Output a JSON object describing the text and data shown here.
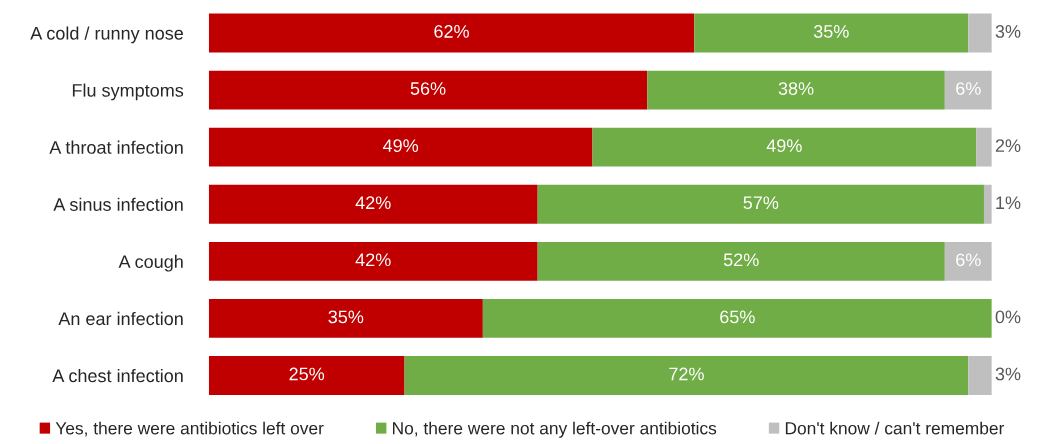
{
  "chart_data": {
    "type": "bar",
    "orientation": "horizontal",
    "stacked": true,
    "tick_labels": "y",
    "legend": "bottom",
    "grid": false,
    "categories": [
      "A cold / runny nose",
      "Flu symptoms",
      "A throat infection",
      "A sinus infection",
      "A cough",
      "An ear infection",
      "A chest infection"
    ],
    "series": [
      {
        "name": "Yes, there were antibiotics left over",
        "color": "#c00000",
        "values": [
          62,
          56,
          49,
          42,
          42,
          35,
          25
        ],
        "value_labels": [
          "62%",
          "56%",
          "49%",
          "42%",
          "42%",
          "35%",
          "25%"
        ]
      },
      {
        "name": "No, there were not any left-over antibiotics",
        "color": "#70ad47",
        "values": [
          35,
          38,
          49,
          57,
          52,
          65,
          72
        ],
        "value_labels": [
          "35%",
          "38%",
          "49%",
          "57%",
          "52%",
          "65%",
          "72%"
        ]
      },
      {
        "name": "Don't know / can't remember",
        "color": "#bfbfbf",
        "values": [
          3,
          6,
          2,
          1,
          6,
          0,
          3
        ],
        "value_labels": [
          "3%",
          "6%",
          "2%",
          "1%",
          "6%",
          "0%",
          "3%"
        ]
      }
    ]
  }
}
